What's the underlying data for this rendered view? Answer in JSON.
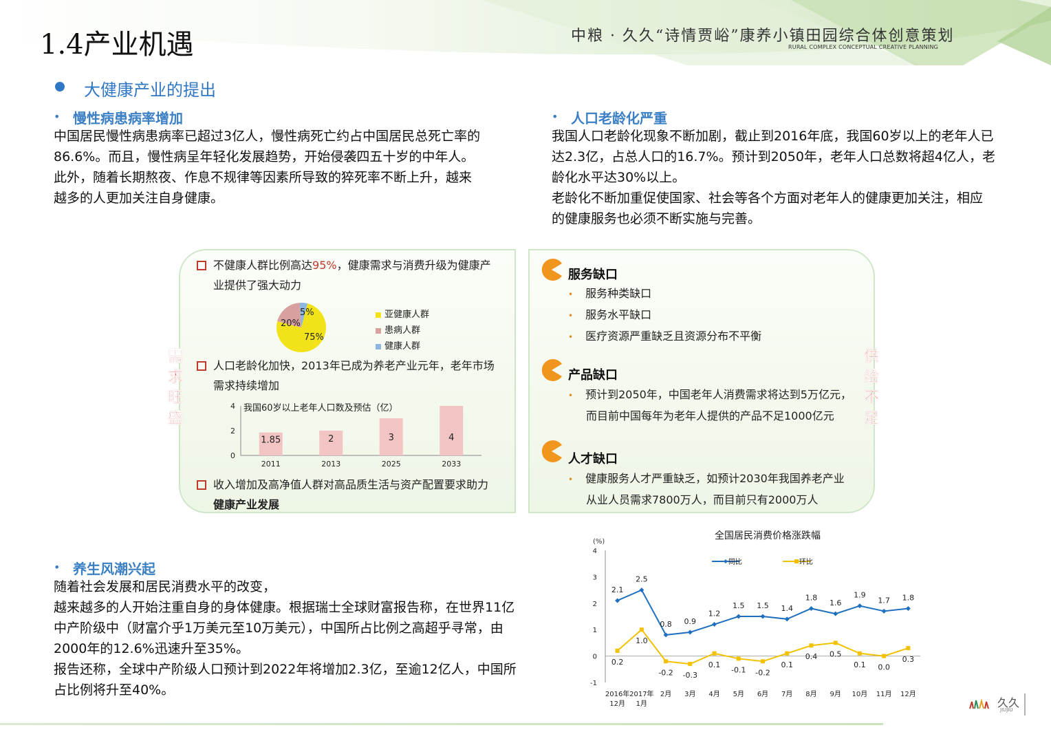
{
  "header": {
    "title": "1.4产业机遇",
    "brand_cn": "中粮 · 久久“诗情贾峪”康养小镇田园综合体创意策划",
    "brand_en": "RURAL COMPLEX CONCEPTUAL CREATIVE PLANNING"
  },
  "section": {
    "heading": "大健康产业的提出"
  },
  "chronic": {
    "title": "慢性病患病率增加",
    "lines": [
      "中国居民慢性病患病率已超过3亿人，慢性病死亡约占中国居民总死亡率的",
      "86.6%。而且，慢性病呈年轻化发展趋势，开始侵袭四五十岁的中年人。",
      "此外，随着长期熬夜、作息不规律等因素所导致的猝死率不断上升，越来",
      "越多的人更加关注自身健康。"
    ]
  },
  "aging": {
    "title": "人口老龄化严重",
    "lines": [
      "我国人口老龄化现象不断加剧，截止到2016年底，我国60岁以上的老年人已",
      "达2.3亿，占总人口的16.7%。预计到2050年，老年人口总数将超4亿人，老",
      "龄化水平达30%以上。",
      "老龄化不断加重促使国家、社会等各个方面对老年人的健康更加关注，相应",
      "的健康服务也必须不断实施与完善。"
    ]
  },
  "demand_panel": {
    "side_label": [
      "需",
      "求",
      "旺",
      "盛"
    ],
    "item1": {
      "pre": "不健康人群比例高达",
      "highlight": "95%",
      "post": "，健康需求与消费升级为健康产",
      "line2": "业提供了强大动力"
    },
    "pie": {
      "slices": [
        {
          "label": "亚健康人群",
          "value": 75,
          "text": "75%",
          "color": "#f2e21a"
        },
        {
          "label": "患病人群",
          "value": 20,
          "text": "20%",
          "color": "#d9a0a0"
        },
        {
          "label": "健康人群",
          "value": 5,
          "text": "5%",
          "color": "#8fb6e0"
        }
      ]
    },
    "item2": {
      "line1": "人口老龄化加快，2013年已成为养老产业元年，老年市场",
      "line2": "需求持续增加"
    },
    "bar": {
      "title": "我国60岁以上老年人口数及预估（亿）",
      "categories": [
        "2011",
        "2013",
        "2025",
        "2033"
      ],
      "values": [
        1.85,
        2,
        3,
        4
      ],
      "labels": [
        "1.85",
        "2",
        "3",
        "4"
      ],
      "yticks": [
        "0",
        "2",
        "4"
      ],
      "ymax": 4,
      "color": "#f2c4c4"
    },
    "item3": {
      "line1": "收入增加及高净值人群对高品质生活与资产配置要求助力",
      "line2": "健康产业发展"
    }
  },
  "supply_panel": {
    "side_label": [
      "供",
      "给",
      "不",
      "足"
    ],
    "groups": [
      {
        "title": "服务缺口",
        "items": [
          "服务种类缺口",
          "服务水平缺口",
          "医疗资源严重缺乏且资源分布不平衡"
        ]
      },
      {
        "title": "产品缺口",
        "items": [
          "预计到2050年，中国老年人消费需求将达到5万亿元，",
          "而目前中国每年为老年人提供的产品不足1000亿元"
        ]
      },
      {
        "title": "人才缺口",
        "items": [
          "健康服务人才严重缺乏，如预计2030年我国养老产业",
          "从业人员需求7800万人，而目前只有2000万人"
        ]
      }
    ]
  },
  "wellness": {
    "title": "养生风潮兴起",
    "lines": [
      "随着社会发展和居民消费水平的改变，",
      "越来越多的人开始注重自身的身体健康。根据瑞士全球财富报告称，在世界11亿",
      "中产阶级中（财富介乎1万美元至10万美元），中国所占比例之高超乎寻常，由",
      "2000年的12.6%迅速升至35%。",
      "报告还称，全球中产阶级人口预计到2022年将增加2.3亿，至逾12亿人，中国所",
      "占比例将升至40%。"
    ]
  },
  "chart_data": [
    {
      "type": "pie",
      "categories": [
        "亚健康人群",
        "患病人群",
        "健康人群"
      ],
      "values": [
        75,
        20,
        5
      ],
      "legend": "right"
    },
    {
      "type": "bar",
      "title": "我国60岁以上老年人口数及预估（亿）",
      "categories": [
        "2011",
        "2013",
        "2025",
        "2033"
      ],
      "values": [
        1.85,
        2,
        3,
        4
      ],
      "ylim": [
        0,
        4
      ]
    },
    {
      "type": "line",
      "title": "全国居民消费价格涨跌幅",
      "ylabel": "(%)",
      "x_labels": [
        [
          "2016年",
          "12月"
        ],
        [
          "2017年",
          "1月"
        ],
        [
          "2月"
        ],
        [
          "3月"
        ],
        [
          "4月"
        ],
        [
          "5月"
        ],
        [
          "6月"
        ],
        [
          "7月"
        ],
        [
          "8月"
        ],
        [
          "9月"
        ],
        [
          "10月"
        ],
        [
          "11月"
        ],
        [
          "12月"
        ]
      ],
      "yticks": [
        "-1",
        "0",
        "1",
        "2",
        "3",
        "4"
      ],
      "ylim": [
        -1,
        4
      ],
      "series": [
        {
          "name": "同比",
          "color": "#1f6fbf",
          "values": [
            2.1,
            2.5,
            0.8,
            0.9,
            1.2,
            1.5,
            1.5,
            1.4,
            1.8,
            1.6,
            1.9,
            1.7,
            1.8
          ],
          "labels": [
            "2.1",
            "2.5",
            "0.8",
            "0.9",
            "1.2",
            "1.5",
            "1.5",
            "1.4",
            "1.8",
            "1.6",
            "1.9",
            "1.7",
            "1.8"
          ]
        },
        {
          "name": "环比",
          "color": "#f2c200",
          "values": [
            0.2,
            1.0,
            -0.2,
            -0.3,
            0.1,
            -0.1,
            -0.2,
            0.1,
            0.4,
            0.5,
            0.1,
            0.0,
            0.3
          ],
          "labels": [
            "0.2",
            "1.0",
            "-0.2",
            "-0.3",
            "0.1",
            "-0.1",
            "-0.2",
            "0.1",
            "0.4",
            "0.5",
            "0.1",
            "0.0",
            "0.3"
          ]
        }
      ],
      "legend": "top",
      "grid": false
    }
  ],
  "logo": {
    "text_cn": "久久",
    "text_en": "JIUJIU",
    "mark": "ǀɉiv 久久"
  },
  "colors": {
    "accent_blue": "#2f77c4",
    "panel_green": "#cfe6c8",
    "side_red": "#d9534f",
    "pacman_orange": "#f0961e"
  }
}
